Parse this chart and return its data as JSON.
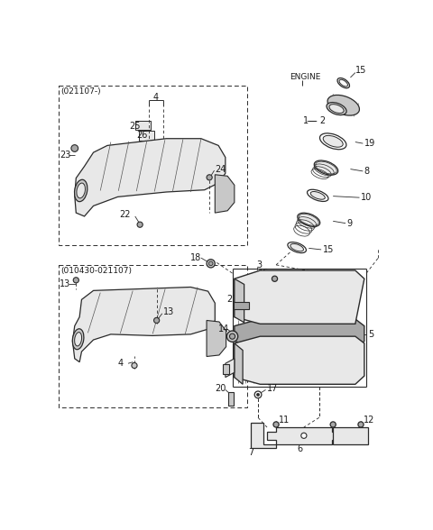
{
  "bg_color": "#ffffff",
  "line_color": "#2a2a2a",
  "text_color": "#1a1a1a",
  "fig_width": 4.8,
  "fig_height": 5.88,
  "dpi": 100,
  "gray_light": "#e8e8e8",
  "gray_mid": "#c8c8c8",
  "gray_dark": "#a8a8a8"
}
